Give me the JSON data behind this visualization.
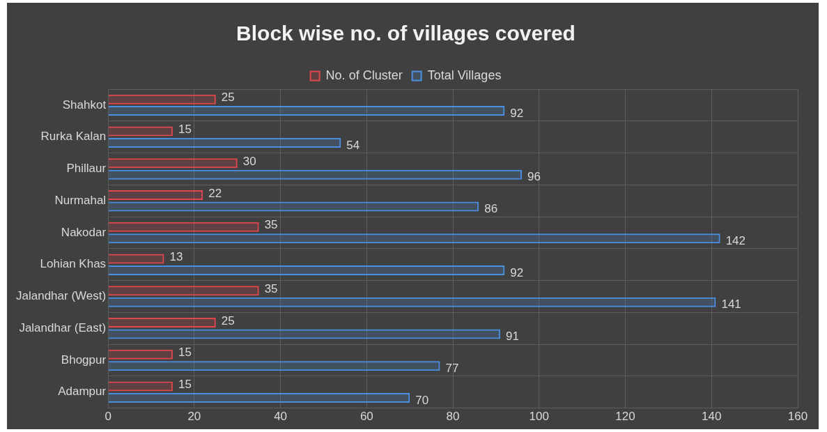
{
  "chart_data": {
    "type": "bar",
    "orientation": "horizontal",
    "title": "Block wise no. of villages covered",
    "categories": [
      "Shahkot",
      "Rurka Kalan",
      "Phillaur",
      "Nurmahal",
      "Nakodar",
      "Lohian Khas",
      "Jalandhar (West)",
      "Jalandhar (East)",
      "Bhogpur",
      "Adampur"
    ],
    "series": [
      {
        "name": "No. of Cluster",
        "color": "#e0484e",
        "values": [
          25,
          15,
          30,
          22,
          35,
          13,
          35,
          25,
          15,
          15
        ]
      },
      {
        "name": "Total Villages",
        "color": "#4a8fe0",
        "values": [
          92,
          54,
          96,
          86,
          142,
          92,
          141,
          91,
          77,
          70
        ]
      }
    ],
    "xlim": [
      0,
      160
    ],
    "xticks": [
      0,
      20,
      40,
      60,
      80,
      100,
      120,
      140,
      160
    ],
    "grid": true,
    "legend": "top",
    "data_labels": true
  }
}
